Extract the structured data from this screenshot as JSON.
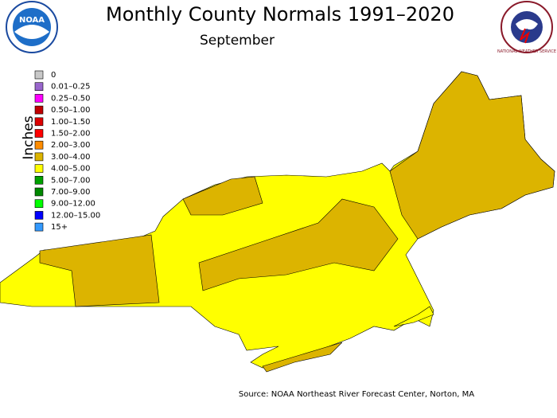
{
  "header": {
    "title": "Monthly County Normals 1991–2020",
    "subtitle": "September"
  },
  "logos": {
    "left": "NOAA",
    "right": "NATIONAL WEATHER SERVICE"
  },
  "legend": {
    "axis_label": "Inches",
    "items": [
      {
        "label": "0",
        "color": "#c8c8c8"
      },
      {
        "label": "0.01–0.25",
        "color": "#9966cc"
      },
      {
        "label": "0.25–0.50",
        "color": "#ff00ff"
      },
      {
        "label": "0.50–1.00",
        "color": "#c00000"
      },
      {
        "label": "1.00–1.50",
        "color": "#dd0000"
      },
      {
        "label": "1.50–2.00",
        "color": "#ff0000"
      },
      {
        "label": "2.00–3.00",
        "color": "#ff8c00"
      },
      {
        "label": "3.00–4.00",
        "color": "#dcb400"
      },
      {
        "label": "4.00–5.00",
        "color": "#ffff00"
      },
      {
        "label": "5.00–7.00",
        "color": "#00a000"
      },
      {
        "label": "7.00–9.00",
        "color": "#008800"
      },
      {
        "label": "9.00–12.00",
        "color": "#00ff00"
      },
      {
        "label": "12.00–15.00",
        "color": "#0000ff"
      },
      {
        "label": "15+",
        "color": "#3399ff"
      }
    ]
  },
  "source": "Source: NOAA Northeast River Forecast Center, Norton, MA"
}
